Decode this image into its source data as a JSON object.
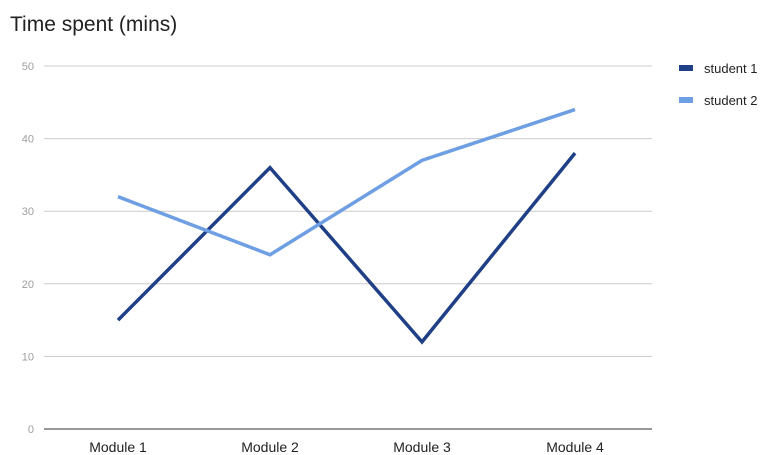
{
  "chart_data": {
    "type": "line",
    "title": "Time spent (mins)",
    "xlabel": "",
    "ylabel": "",
    "categories": [
      "Module 1",
      "Module 2",
      "Module 3",
      "Module 4"
    ],
    "ylim": [
      0,
      50
    ],
    "yticks": [
      0,
      10,
      20,
      30,
      40,
      50
    ],
    "grid": true,
    "legend_position": "right",
    "series": [
      {
        "name": "student 1",
        "color": "#1f3f86",
        "values": [
          15,
          36,
          12,
          38
        ]
      },
      {
        "name": "student 2",
        "color": "#6f9fe3",
        "values": [
          32,
          24,
          37,
          44
        ]
      }
    ]
  }
}
